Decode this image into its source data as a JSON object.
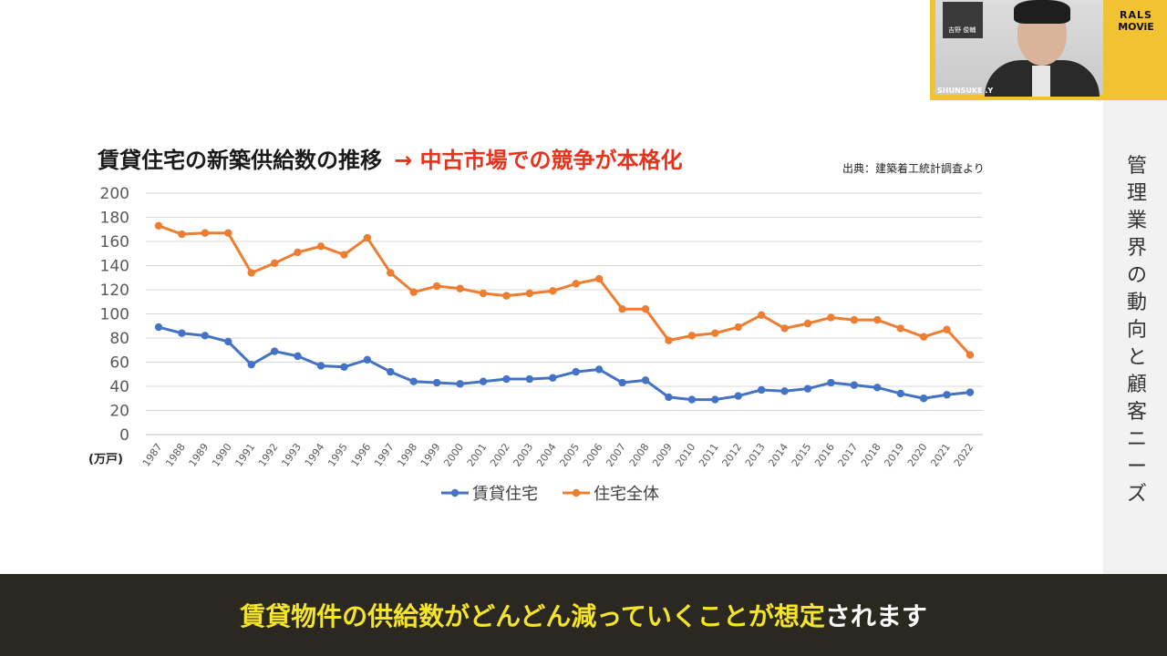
{
  "slide": {
    "title_main": "賃貸住宅の新築供給数の推移",
    "title_arrow": "→ 中古市場での競争が本格化",
    "source": "出典：建築着工統計調査より",
    "unit": "(万戸)",
    "side_title": "管理業界の動向と顧客ニーズ"
  },
  "video": {
    "label": "SHUNSUKE .Y",
    "name_card": "吉野 俊輔"
  },
  "logo": {
    "line1": "RALS",
    "line2": "MOViE"
  },
  "subtitle": {
    "highlight": "賃貸物件の供給数がどんどん減っていくことが想定",
    "plain": "されます"
  },
  "colors": {
    "series_rental": "#4472c4",
    "series_total": "#ed7d31",
    "title_accent": "#e8321c",
    "subtitle_text": "#f5e428",
    "subtitle_bg": "#2b2721",
    "brand_yellow": "#f1c232"
  },
  "chart_data": {
    "type": "line",
    "categories": [
      "1987",
      "1988",
      "1989",
      "1990",
      "1991",
      "1992",
      "1993",
      "1994",
      "1995",
      "1996",
      "1997",
      "1998",
      "1999",
      "2000",
      "2001",
      "2002",
      "2003",
      "2004",
      "2005",
      "2006",
      "2007",
      "2008",
      "2009",
      "2010",
      "2011",
      "2012",
      "2013",
      "2014",
      "2015",
      "2016",
      "2017",
      "2018",
      "2019",
      "2020",
      "2021",
      "2022"
    ],
    "series": [
      {
        "name": "賃貸住宅",
        "color": "#4472c4",
        "values": [
          89,
          84,
          82,
          77,
          58,
          69,
          65,
          57,
          56,
          62,
          52,
          44,
          43,
          42,
          44,
          46,
          46,
          47,
          52,
          54,
          43,
          45,
          31,
          29,
          29,
          32,
          37,
          36,
          38,
          43,
          41,
          39,
          34,
          30,
          33,
          35
        ]
      },
      {
        "name": "住宅全体",
        "color": "#ed7d31",
        "values": [
          173,
          166,
          167,
          167,
          134,
          142,
          151,
          156,
          149,
          163,
          134,
          118,
          123,
          121,
          117,
          115,
          117,
          119,
          125,
          129,
          104,
          104,
          78,
          82,
          84,
          89,
          99,
          88,
          92,
          97,
          95,
          95,
          88,
          81,
          87,
          66
        ]
      }
    ],
    "yticks": [
      "0",
      "20",
      "40",
      "60",
      "80",
      "100",
      "120",
      "140",
      "160",
      "180",
      "200"
    ],
    "ylim": [
      0,
      200
    ],
    "grid": true,
    "legend": "bottom"
  }
}
